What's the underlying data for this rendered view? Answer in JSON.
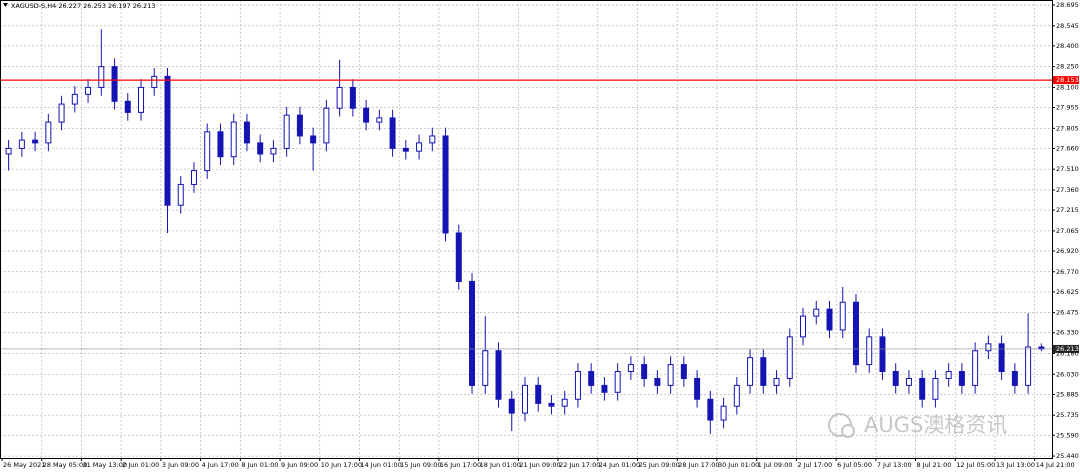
{
  "chart_data": {
    "type": "candlestick",
    "title": "XAGUSD-S,H4  26.227 26.253 26.197 26.213",
    "watermark": "AUGS澳格资讯",
    "color": "#1414b4",
    "categories": [
      "26 May 2021",
      null,
      null,
      "28 May 05:00",
      null,
      null,
      "31 May 13:00",
      null,
      null,
      "2 Jun 01:00",
      null,
      null,
      "3 Jun 09:00",
      null,
      null,
      "4 Jun 17:00",
      null,
      null,
      "8 Jun 01:00",
      null,
      null,
      "9 Jun 09:00",
      null,
      null,
      "10 Jun 17:00",
      null,
      null,
      "14 Jun 01:00",
      null,
      null,
      "15 Jun 09:00",
      null,
      null,
      "16 Jun 17:00",
      null,
      null,
      "18 Jun 01:00",
      null,
      null,
      "21 Jun 09:00",
      null,
      null,
      "22 Jun 17:00",
      null,
      null,
      "24 Jun 01:00",
      null,
      null,
      "25 Jun 09:00",
      null,
      null,
      "28 Jun 17:00",
      null,
      null,
      "30 Jun 01:00",
      null,
      null,
      "1 Jul 09:00",
      null,
      null,
      "2 Jul 17:00",
      null,
      null,
      "6 Jul 05:00",
      null,
      null,
      "7 Jul 13:00",
      null,
      null,
      "8 Jul 21:00",
      null,
      null,
      "12 Jul 05:00",
      null,
      null,
      "13 Jul 13:00",
      null,
      null,
      "14 Jul 21:00"
    ],
    "open": [
      27.62,
      27.66,
      27.72,
      27.7,
      27.85,
      27.98,
      28.05,
      28.1,
      28.25,
      28.0,
      27.92,
      28.1,
      28.18,
      27.25,
      27.4,
      27.5,
      27.78,
      27.6,
      27.85,
      27.7,
      27.62,
      27.66,
      27.9,
      27.75,
      27.7,
      27.95,
      28.1,
      27.95,
      27.85,
      27.88,
      27.66,
      27.64,
      27.7,
      27.75,
      27.05,
      26.7,
      25.95,
      26.2,
      25.85,
      25.75,
      25.95,
      25.82,
      25.8,
      25.85,
      26.05,
      25.95,
      25.9,
      26.05,
      26.1,
      26.0,
      25.95,
      26.1,
      26.0,
      25.85,
      25.7,
      25.8,
      25.95,
      26.15,
      25.95,
      26.0,
      26.3,
      26.45,
      26.5,
      26.35,
      26.55,
      26.1,
      26.3,
      26.05,
      25.95,
      26.0,
      25.85,
      26.0,
      26.05,
      25.95,
      26.2,
      26.25,
      26.05,
      25.95,
      26.227
    ],
    "high": [
      27.72,
      27.78,
      27.78,
      27.91,
      28.04,
      28.11,
      28.16,
      28.52,
      28.31,
      28.06,
      28.16,
      28.24,
      28.24,
      27.46,
      27.56,
      27.84,
      27.84,
      27.91,
      27.91,
      27.76,
      27.72,
      27.96,
      27.96,
      27.81,
      28.01,
      28.3,
      28.16,
      28.01,
      27.94,
      27.94,
      27.72,
      27.76,
      27.81,
      27.81,
      27.11,
      26.76,
      26.45,
      26.26,
      25.91,
      26.01,
      26.01,
      25.88,
      25.91,
      26.11,
      26.11,
      26.01,
      26.11,
      26.16,
      26.16,
      26.06,
      26.16,
      26.16,
      26.06,
      25.91,
      25.86,
      26.01,
      26.21,
      26.21,
      26.06,
      26.36,
      26.51,
      26.56,
      26.56,
      26.66,
      26.61,
      26.36,
      26.36,
      26.11,
      26.06,
      26.06,
      26.06,
      26.11,
      26.11,
      26.26,
      26.31,
      26.31,
      26.11,
      26.47,
      26.253
    ],
    "low": [
      27.5,
      27.6,
      27.64,
      27.64,
      27.79,
      27.92,
      27.99,
      28.04,
      27.94,
      27.86,
      27.86,
      28.04,
      27.05,
      27.19,
      27.34,
      27.44,
      27.54,
      27.54,
      27.64,
      27.56,
      27.56,
      27.6,
      27.69,
      27.5,
      27.64,
      27.89,
      27.89,
      27.79,
      27.79,
      27.6,
      27.58,
      27.58,
      27.64,
      26.99,
      26.64,
      25.89,
      25.89,
      25.79,
      25.62,
      25.69,
      25.76,
      25.74,
      25.74,
      25.79,
      25.89,
      25.84,
      25.84,
      25.99,
      25.94,
      25.89,
      25.89,
      25.94,
      25.79,
      25.6,
      25.64,
      25.74,
      25.89,
      25.89,
      25.89,
      25.94,
      26.24,
      26.39,
      26.29,
      26.29,
      26.04,
      26.04,
      25.99,
      25.89,
      25.89,
      25.79,
      25.79,
      25.94,
      25.89,
      25.89,
      26.14,
      25.99,
      25.89,
      25.89,
      26.197
    ],
    "close": [
      27.66,
      27.72,
      27.7,
      27.85,
      27.98,
      28.05,
      28.1,
      28.25,
      28.0,
      27.92,
      28.1,
      28.18,
      27.25,
      27.4,
      27.5,
      27.78,
      27.6,
      27.85,
      27.7,
      27.62,
      27.66,
      27.9,
      27.75,
      27.7,
      27.95,
      28.1,
      27.95,
      27.85,
      27.88,
      27.66,
      27.64,
      27.7,
      27.75,
      27.05,
      26.7,
      25.95,
      26.2,
      25.85,
      25.75,
      25.95,
      25.82,
      25.8,
      25.85,
      26.05,
      25.95,
      25.9,
      26.05,
      26.1,
      26.0,
      25.95,
      26.1,
      26.0,
      25.85,
      25.7,
      25.8,
      25.95,
      26.15,
      25.95,
      26.0,
      26.3,
      26.45,
      26.5,
      26.35,
      26.55,
      26.1,
      26.3,
      26.05,
      25.95,
      26.0,
      25.85,
      26.0,
      26.05,
      25.95,
      26.2,
      26.25,
      26.05,
      25.95,
      26.227,
      26.213
    ],
    "ylim": [
      25.426,
      28.731
    ],
    "yticks": [
      28.695,
      28.545,
      {
        "value": 28.4,
        "label": "28.400"
      },
      {
        "value": 28.25,
        "label": "28.250"
      },
      {
        "value": 28.1,
        "label": "28.100"
      },
      27.955,
      27.805,
      {
        "value": 27.66,
        "label": "27.660"
      },
      {
        "value": 27.51,
        "label": "27.510"
      },
      {
        "value": 27.36,
        "label": "27.360"
      },
      27.215,
      27.065,
      {
        "value": 26.92,
        "label": "26.920"
      },
      {
        "value": 26.77,
        "label": "26.770"
      },
      26.625,
      26.475,
      {
        "value": 26.33,
        "label": "26.330"
      },
      {
        "value": 26.18,
        "label": "26.180"
      },
      {
        "value": 26.03,
        "label": "26.030"
      },
      25.885,
      25.735,
      {
        "value": 25.59,
        "label": "25.590"
      },
      {
        "value": 25.44,
        "label": "25.440"
      }
    ],
    "grid": true,
    "hlines": [
      {
        "value": 28.153,
        "color": "#ff0000"
      },
      {
        "value": 26.213,
        "color": "#8c8c8c"
      }
    ]
  }
}
